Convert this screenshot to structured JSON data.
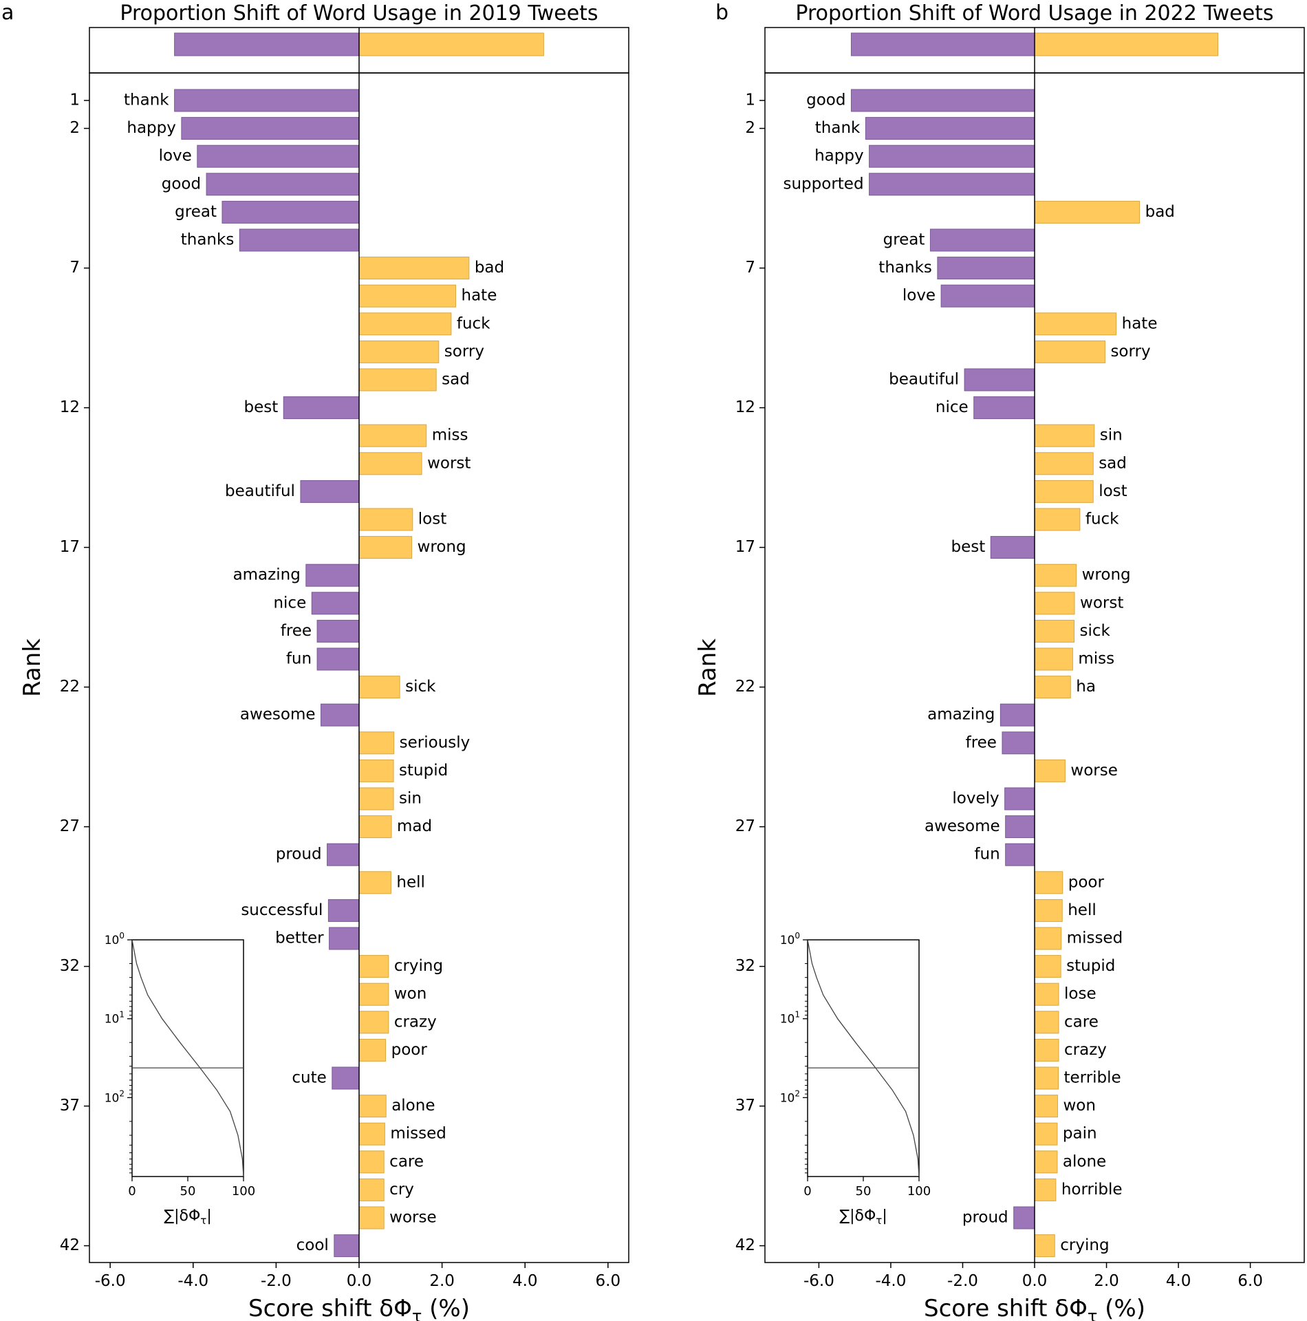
{
  "colors": {
    "positive": "#FFC95B",
    "negative": "#9C76B8",
    "positive_edge": "#D9A740",
    "negative_edge": "#7B5A97"
  },
  "chart_data": [
    {
      "type": "bar",
      "panel_label": "a",
      "title": "Proportion Shift of Word Usage in 2019 Tweets",
      "xlabel": "Score shift δΦ",
      "xlabel_sub": "τ",
      "xlabel_unit": "(%)",
      "ylabel": "Rank",
      "xlim": [
        -6.5,
        6.5
      ],
      "xticks": [
        -6.0,
        -4.0,
        -2.0,
        0.0,
        2.0,
        4.0,
        6.0
      ],
      "xtick_labels": [
        "-6.0",
        "-4.0",
        "-2.0",
        "0.0",
        "2.0",
        "4.0",
        "6.0"
      ],
      "yticks": [
        1,
        2,
        7,
        12,
        17,
        22,
        27,
        32,
        37,
        42
      ],
      "ytick_labels": [
        "1",
        "2",
        "7",
        "12",
        "17",
        "22",
        "27",
        "32",
        "37",
        "42"
      ],
      "summary": {
        "negative": -4.45,
        "positive": 4.45
      },
      "words": [
        "thank",
        "happy",
        "love",
        "good",
        "great",
        "thanks",
        "bad",
        "hate",
        "fuck",
        "sorry",
        "sad",
        "best",
        "miss",
        "worst",
        "beautiful",
        "lost",
        "wrong",
        "amazing",
        "nice",
        "free",
        "fun",
        "sick",
        "awesome",
        "seriously",
        "stupid",
        "sin",
        "mad",
        "proud",
        "hell",
        "successful",
        "better",
        "crying",
        "won",
        "crazy",
        "poor",
        "cute",
        "alone",
        "missed",
        "care",
        "cry",
        "worse",
        "cool"
      ],
      "values": [
        -4.45,
        -4.28,
        -3.9,
        -3.68,
        -3.3,
        -2.88,
        2.65,
        2.33,
        2.22,
        1.92,
        1.86,
        -1.82,
        1.62,
        1.51,
        -1.41,
        1.29,
        1.27,
        -1.28,
        -1.14,
        -1.01,
        -1.01,
        0.98,
        -0.92,
        0.84,
        0.83,
        0.83,
        0.78,
        -0.77,
        0.77,
        -0.74,
        -0.72,
        0.71,
        0.71,
        0.71,
        0.64,
        -0.65,
        0.65,
        0.62,
        0.6,
        0.6,
        0.6,
        -0.6
      ],
      "inset": {
        "xlabel": "∑|δΦ",
        "xlabel_sub": "τ",
        "xlabel_end": "|",
        "xticks": [
          0,
          50,
          100
        ],
        "xtick_labels": [
          "0",
          "50",
          "100"
        ],
        "yticks": [
          1,
          10,
          100
        ],
        "ytick_labels": [
          {
            "base": "10",
            "exp": "0"
          },
          {
            "base": "10",
            "exp": "1"
          },
          {
            "base": "10",
            "exp": "2"
          }
        ],
        "ylim": [
          1,
          1000
        ],
        "cutoff_rank": 42,
        "curve_rank": [
          1,
          2,
          3,
          5,
          10,
          20,
          42,
          80,
          150,
          300,
          600,
          1000
        ],
        "curve_cumulative": [
          0,
          4,
          8,
          14,
          27,
          43,
          61,
          76,
          88,
          95,
          99,
          100
        ]
      }
    },
    {
      "type": "bar",
      "panel_label": "b",
      "title": "Proportion Shift of Word Usage in 2022 Tweets",
      "xlabel": "Score shift δΦ",
      "xlabel_sub": "τ",
      "xlabel_unit": "(%)",
      "ylabel": "Rank",
      "xlim": [
        -7.5,
        7.5
      ],
      "xticks": [
        -6.0,
        -4.0,
        -2.0,
        0.0,
        2.0,
        4.0,
        6.0
      ],
      "xtick_labels": [
        "-6.0",
        "-4.0",
        "-2.0",
        "0.0",
        "2.0",
        "4.0",
        "6.0"
      ],
      "yticks": [
        1,
        2,
        7,
        12,
        17,
        22,
        27,
        32,
        37,
        42
      ],
      "ytick_labels": [
        "1",
        "2",
        "7",
        "12",
        "17",
        "22",
        "27",
        "32",
        "37",
        "42"
      ],
      "summary": {
        "negative": -5.1,
        "positive": 5.1
      },
      "words": [
        "good",
        "thank",
        "happy",
        "supported",
        "bad",
        "great",
        "thanks",
        "love",
        "hate",
        "sorry",
        "beautiful",
        "nice",
        "sin",
        "sad",
        "lost",
        "fuck",
        "best",
        "wrong",
        "worst",
        "sick",
        "miss",
        "ha",
        "amazing",
        "free",
        "worse",
        "lovely",
        "awesome",
        "fun",
        "poor",
        "hell",
        "missed",
        "stupid",
        "lose",
        "care",
        "crazy",
        "terrible",
        "won",
        "pain",
        "alone",
        "horrible",
        "proud",
        "crying"
      ],
      "values": [
        -5.1,
        -4.7,
        -4.6,
        -4.6,
        2.92,
        -2.9,
        -2.7,
        -2.6,
        2.27,
        1.96,
        -1.95,
        -1.69,
        1.66,
        1.63,
        1.63,
        1.26,
        -1.22,
        1.16,
        1.11,
        1.1,
        1.06,
        1.0,
        -0.95,
        -0.9,
        0.85,
        -0.83,
        -0.81,
        -0.81,
        0.78,
        0.77,
        0.74,
        0.73,
        0.67,
        0.67,
        0.67,
        0.66,
        0.64,
        0.63,
        0.63,
        0.59,
        -0.58,
        0.56
      ],
      "inset": {
        "xlabel": "∑|δΦ",
        "xlabel_sub": "τ",
        "xlabel_end": "|",
        "xticks": [
          0,
          50,
          100
        ],
        "xtick_labels": [
          "0",
          "50",
          "100"
        ],
        "yticks": [
          1,
          10,
          100
        ],
        "ytick_labels": [
          {
            "base": "10",
            "exp": "0"
          },
          {
            "base": "10",
            "exp": "1"
          },
          {
            "base": "10",
            "exp": "2"
          }
        ],
        "ylim": [
          1,
          1000
        ],
        "cutoff_rank": 42,
        "curve_rank": [
          1,
          2,
          3,
          5,
          10,
          20,
          42,
          80,
          150,
          300,
          600,
          1000
        ],
        "curve_cumulative": [
          0,
          4,
          8,
          14,
          27,
          43,
          61,
          76,
          88,
          95,
          99,
          100
        ]
      }
    }
  ]
}
